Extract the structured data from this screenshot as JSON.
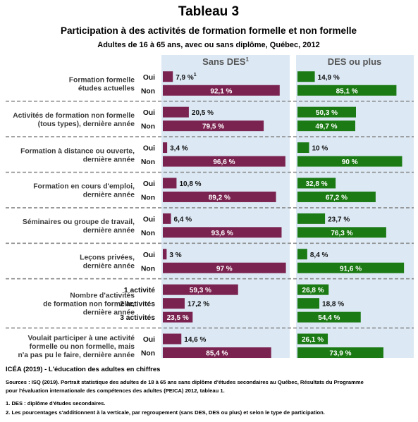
{
  "header": {
    "title": "Tableau 3",
    "subtitle": "Participation à des activités de formation formelle et non formelle",
    "subsubtitle": "Adultes de 16 à 65 ans, avec ou sans diplôme, Québec, 2012"
  },
  "chart_data": {
    "type": "bar",
    "orientation": "horizontal",
    "panels": [
      "Sans DES",
      "DES ou plus"
    ],
    "panel_superscript": "1",
    "xlim": [
      0,
      100
    ],
    "colors": {
      "sans_des": "#7b2350",
      "des_plus": "#1b7a14",
      "panel_bg": "#dce9f5",
      "text_on_bar": "#ffffff"
    },
    "groups": [
      {
        "label": "Formation formelle études actuelles",
        "label_lines": [
          "Formation formelle",
          "études actuelles"
        ],
        "rows": [
          {
            "label": "Oui",
            "sans_des": 7.9,
            "sans_des_label": "7,9 %",
            "sans_des_sup": "1",
            "des_plus": 14.9,
            "des_plus_label": "14,9 %"
          },
          {
            "label": "Non",
            "sans_des": 92.1,
            "sans_des_label": "92,1 %",
            "des_plus": 85.1,
            "des_plus_label": "85,1 %"
          }
        ]
      },
      {
        "label": "Activités de formation non formelle (tous types), dernière année",
        "label_lines": [
          "Activités de formation non formelle",
          "(tous types), dernière année"
        ],
        "rows": [
          {
            "label": "Oui",
            "sans_des": 20.5,
            "sans_des_label": "20,5 %",
            "des_plus": 50.3,
            "des_plus_label": "50,3 %"
          },
          {
            "label": "Non",
            "sans_des": 79.5,
            "sans_des_label": "79,5 %",
            "des_plus": 49.7,
            "des_plus_label": "49,7 %"
          }
        ]
      },
      {
        "label": "Formation à distance ou ouverte, dernière année",
        "label_lines": [
          "Formation à distance ou ouverte,",
          "dernière année"
        ],
        "rows": [
          {
            "label": "Oui",
            "sans_des": 3.4,
            "sans_des_label": "3,4 %",
            "des_plus": 10,
            "des_plus_label": "10 %"
          },
          {
            "label": "Non",
            "sans_des": 96.6,
            "sans_des_label": "96,6 %",
            "des_plus": 90,
            "des_plus_label": "90 %"
          }
        ]
      },
      {
        "label": "Formation en cours d'emploi, dernière année",
        "label_lines": [
          "Formation en cours d'emploi,",
          "dernière année"
        ],
        "rows": [
          {
            "label": "Oui",
            "sans_des": 10.8,
            "sans_des_label": "10,8 %",
            "des_plus": 32.8,
            "des_plus_label": "32,8 %"
          },
          {
            "label": "Non",
            "sans_des": 89.2,
            "sans_des_label": "89,2 %",
            "des_plus": 67.2,
            "des_plus_label": "67,2 %"
          }
        ]
      },
      {
        "label": "Séminaires ou groupe de travail, dernière année",
        "label_lines": [
          "Séminaires ou groupe de travail,",
          "dernière année"
        ],
        "rows": [
          {
            "label": "Oui",
            "sans_des": 6.4,
            "sans_des_label": "6,4 %",
            "des_plus": 23.7,
            "des_plus_label": "23,7 %"
          },
          {
            "label": "Non",
            "sans_des": 93.6,
            "sans_des_label": "93,6 %",
            "des_plus": 76.3,
            "des_plus_label": "76,3 %"
          }
        ]
      },
      {
        "label": "Leçons privées, dernière année",
        "label_lines": [
          "Leçons privées,",
          "dernière année"
        ],
        "rows": [
          {
            "label": "Oui",
            "sans_des": 3,
            "sans_des_label": "3 %",
            "des_plus": 8.4,
            "des_plus_label": "8,4 %"
          },
          {
            "label": "Non",
            "sans_des": 97,
            "sans_des_label": "97 %",
            "des_plus": 91.6,
            "des_plus_label": "91,6 %"
          }
        ]
      },
      {
        "label": "Nombre d'activités de formation non formelle, dernière année",
        "label_lines": [
          "Nombre d'activités",
          "de formation non formelle,",
          "dernière année"
        ],
        "rows": [
          {
            "label": "1 activité",
            "sans_des": 59.3,
            "sans_des_label": "59,3 %",
            "des_plus": 26.8,
            "des_plus_label": "26,8 %"
          },
          {
            "label": "2 activités",
            "sans_des": 17.2,
            "sans_des_label": "17,2 %",
            "des_plus": 18.8,
            "des_plus_label": "18,8 %"
          },
          {
            "label": "3 activités",
            "sans_des": 23.5,
            "sans_des_label": "23,5 %",
            "des_plus": 54.4,
            "des_plus_label": "54,4 %"
          }
        ]
      },
      {
        "label": "Voulait participer à une activité formelle ou non formelle, mais n'a pas pu le faire, dernière année",
        "label_lines": [
          "Voulait participer à une activité",
          "formelle ou non formelle, mais",
          "n'a pas pu le faire, dernière année"
        ],
        "rows": [
          {
            "label": "Oui",
            "sans_des": 14.6,
            "sans_des_label": "14,6 %",
            "des_plus": 26.1,
            "des_plus_label": "26,1 %"
          },
          {
            "label": "Non",
            "sans_des": 85.4,
            "sans_des_label": "85,4 %",
            "des_plus": 73.9,
            "des_plus_label": "73,9 %"
          }
        ]
      }
    ]
  },
  "footer": {
    "brand": "ICÉA (2019) - L'éducation des adultes en chiffres",
    "sources": [
      "Sources : ISQ (2019). Portrait statistique des adultes de 18 à 65 ans sans diplôme d'études secondaires au Québec, Résultats du Programme",
      "pour l'évaluation internationale des compétences des adultes (PEICA) 2012, tableau 1."
    ],
    "notes": [
      "1. DES : diplôme d'études secondaires.",
      "2. Les pourcentages s'additionnent à la verticale, par regroupement (sans DES, DES ou plus) et selon le type de participation."
    ]
  }
}
